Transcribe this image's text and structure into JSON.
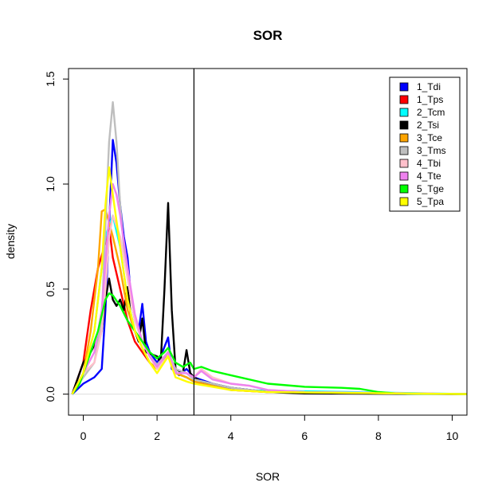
{
  "chart_data": {
    "type": "line",
    "title": "SOR",
    "xlabel": "SOR",
    "ylabel": "density",
    "xlim": [
      -0.4,
      10.4
    ],
    "ylim": [
      -0.1,
      1.55
    ],
    "xticks": [
      "0",
      "2",
      "4",
      "6",
      "8",
      "10"
    ],
    "yticks": [
      "0.0",
      "0.5",
      "1.0",
      "1.5"
    ],
    "vline": 3,
    "legend_position": "top-right",
    "series": [
      {
        "name": "1_Tdi",
        "color": "#0000ff",
        "points": [
          [
            -0.3,
            0
          ],
          [
            0,
            0.05
          ],
          [
            0.3,
            0.08
          ],
          [
            0.5,
            0.12
          ],
          [
            0.6,
            0.4
          ],
          [
            0.7,
            0.8
          ],
          [
            0.8,
            1.21
          ],
          [
            0.9,
            1.1
          ],
          [
            1.0,
            0.9
          ],
          [
            1.1,
            0.75
          ],
          [
            1.2,
            0.65
          ],
          [
            1.3,
            0.45
          ],
          [
            1.4,
            0.35
          ],
          [
            1.5,
            0.3
          ],
          [
            1.6,
            0.43
          ],
          [
            1.7,
            0.25
          ],
          [
            1.8,
            0.2
          ],
          [
            2.0,
            0.15
          ],
          [
            2.1,
            0.18
          ],
          [
            2.3,
            0.27
          ],
          [
            2.4,
            0.12
          ],
          [
            2.6,
            0.09
          ],
          [
            2.8,
            0.12
          ],
          [
            3.0,
            0.08
          ],
          [
            3.5,
            0.05
          ],
          [
            4,
            0.03
          ],
          [
            5,
            0.01
          ],
          [
            6,
            0.005
          ],
          [
            10.4,
            0
          ]
        ]
      },
      {
        "name": "1_Tps",
        "color": "#ff0000",
        "points": [
          [
            -0.3,
            0
          ],
          [
            0,
            0.15
          ],
          [
            0.2,
            0.4
          ],
          [
            0.4,
            0.6
          ],
          [
            0.6,
            0.72
          ],
          [
            0.7,
            0.8
          ],
          [
            0.8,
            0.65
          ],
          [
            1.0,
            0.5
          ],
          [
            1.2,
            0.35
          ],
          [
            1.4,
            0.25
          ],
          [
            1.6,
            0.2
          ],
          [
            1.8,
            0.15
          ],
          [
            2.0,
            0.12
          ],
          [
            2.3,
            0.2
          ],
          [
            2.5,
            0.1
          ],
          [
            2.8,
            0.08
          ],
          [
            3,
            0.06
          ],
          [
            4,
            0.02
          ],
          [
            5,
            0.01
          ],
          [
            10.4,
            0
          ]
        ]
      },
      {
        "name": "2_Tcm",
        "color": "#00ffff",
        "points": [
          [
            -0.3,
            0
          ],
          [
            0,
            0.1
          ],
          [
            0.3,
            0.3
          ],
          [
            0.6,
            0.75
          ],
          [
            0.8,
            0.85
          ],
          [
            1.0,
            0.7
          ],
          [
            1.2,
            0.45
          ],
          [
            1.4,
            0.3
          ],
          [
            1.6,
            0.22
          ],
          [
            1.8,
            0.15
          ],
          [
            2.0,
            0.12
          ],
          [
            2.3,
            0.18
          ],
          [
            2.5,
            0.1
          ],
          [
            2.8,
            0.08
          ],
          [
            3,
            0.06
          ],
          [
            4,
            0.02
          ],
          [
            10.4,
            0
          ]
        ]
      },
      {
        "name": "2_Tsi",
        "color": "#000000",
        "points": [
          [
            -0.3,
            0
          ],
          [
            0,
            0.15
          ],
          [
            0.2,
            0.2
          ],
          [
            0.5,
            0.3
          ],
          [
            0.6,
            0.45
          ],
          [
            0.7,
            0.55
          ],
          [
            0.8,
            0.45
          ],
          [
            0.9,
            0.42
          ],
          [
            1.0,
            0.45
          ],
          [
            1.1,
            0.4
          ],
          [
            1.2,
            0.51
          ],
          [
            1.3,
            0.35
          ],
          [
            1.5,
            0.25
          ],
          [
            1.6,
            0.36
          ],
          [
            1.7,
            0.2
          ],
          [
            2.0,
            0.18
          ],
          [
            2.1,
            0.15
          ],
          [
            2.2,
            0.5
          ],
          [
            2.3,
            0.91
          ],
          [
            2.4,
            0.4
          ],
          [
            2.5,
            0.12
          ],
          [
            2.7,
            0.1
          ],
          [
            2.8,
            0.21
          ],
          [
            2.9,
            0.1
          ],
          [
            3.0,
            0.08
          ],
          [
            3.2,
            0.06
          ],
          [
            3.5,
            0.05
          ],
          [
            4,
            0.03
          ],
          [
            5,
            0.01
          ],
          [
            6,
            0.003
          ],
          [
            10.4,
            0
          ]
        ]
      },
      {
        "name": "3_Tce",
        "color": "#ffa500",
        "points": [
          [
            -0.3,
            0
          ],
          [
            0,
            0.1
          ],
          [
            0.2,
            0.3
          ],
          [
            0.4,
            0.6
          ],
          [
            0.5,
            0.87
          ],
          [
            0.6,
            0.88
          ],
          [
            0.8,
            0.75
          ],
          [
            1.0,
            0.6
          ],
          [
            1.2,
            0.4
          ],
          [
            1.4,
            0.3
          ],
          [
            1.6,
            0.22
          ],
          [
            1.8,
            0.15
          ],
          [
            2.0,
            0.12
          ],
          [
            2.3,
            0.2
          ],
          [
            2.5,
            0.1
          ],
          [
            2.8,
            0.08
          ],
          [
            3,
            0.06
          ],
          [
            4,
            0.02
          ],
          [
            5,
            0.01
          ],
          [
            10.4,
            0
          ]
        ]
      },
      {
        "name": "3_Tms",
        "color": "#bebebe",
        "points": [
          [
            -0.3,
            0
          ],
          [
            0,
            0.08
          ],
          [
            0.3,
            0.15
          ],
          [
            0.5,
            0.35
          ],
          [
            0.6,
            0.8
          ],
          [
            0.7,
            1.2
          ],
          [
            0.8,
            1.39
          ],
          [
            0.9,
            1.2
          ],
          [
            1.0,
            0.9
          ],
          [
            1.1,
            0.7
          ],
          [
            1.2,
            0.55
          ],
          [
            1.4,
            0.35
          ],
          [
            1.6,
            0.25
          ],
          [
            1.8,
            0.18
          ],
          [
            2.0,
            0.14
          ],
          [
            2.3,
            0.2
          ],
          [
            2.5,
            0.12
          ],
          [
            2.8,
            0.1
          ],
          [
            3,
            0.07
          ],
          [
            3.5,
            0.05
          ],
          [
            4,
            0.03
          ],
          [
            5,
            0.01
          ],
          [
            10.4,
            0
          ]
        ]
      },
      {
        "name": "4_Tbi",
        "color": "#ffc0cb",
        "points": [
          [
            -0.3,
            0
          ],
          [
            0,
            0.1
          ],
          [
            0.3,
            0.15
          ],
          [
            0.5,
            0.3
          ],
          [
            0.6,
            0.5
          ],
          [
            0.7,
            0.75
          ],
          [
            0.8,
            0.85
          ],
          [
            1.0,
            0.75
          ],
          [
            1.2,
            0.55
          ],
          [
            1.4,
            0.35
          ],
          [
            1.6,
            0.25
          ],
          [
            1.8,
            0.18
          ],
          [
            2.0,
            0.12
          ],
          [
            2.3,
            0.18
          ],
          [
            2.5,
            0.1
          ],
          [
            2.8,
            0.1
          ],
          [
            3,
            0.08
          ],
          [
            3.2,
            0.12
          ],
          [
            3.5,
            0.08
          ],
          [
            4,
            0.05
          ],
          [
            4.5,
            0.04
          ],
          [
            5,
            0.02
          ],
          [
            6,
            0.01
          ],
          [
            10.4,
            0
          ]
        ]
      },
      {
        "name": "4_Tte",
        "color": "#ee82ee",
        "points": [
          [
            -0.3,
            0
          ],
          [
            0,
            0.1
          ],
          [
            0.3,
            0.2
          ],
          [
            0.5,
            0.4
          ],
          [
            0.7,
            0.85
          ],
          [
            0.8,
            1.0
          ],
          [
            0.9,
            0.95
          ],
          [
            1.0,
            0.85
          ],
          [
            1.2,
            0.6
          ],
          [
            1.4,
            0.38
          ],
          [
            1.6,
            0.25
          ],
          [
            1.8,
            0.18
          ],
          [
            2.0,
            0.13
          ],
          [
            2.3,
            0.2
          ],
          [
            2.5,
            0.1
          ],
          [
            2.8,
            0.1
          ],
          [
            3,
            0.08
          ],
          [
            3.2,
            0.11
          ],
          [
            3.5,
            0.07
          ],
          [
            4,
            0.05
          ],
          [
            4.5,
            0.04
          ],
          [
            5,
            0.02
          ],
          [
            6,
            0.01
          ],
          [
            10.4,
            0
          ]
        ]
      },
      {
        "name": "5_Tge",
        "color": "#00ff00",
        "points": [
          [
            -0.3,
            0
          ],
          [
            -0.1,
            0.05
          ],
          [
            0,
            0.1
          ],
          [
            0.2,
            0.2
          ],
          [
            0.4,
            0.3
          ],
          [
            0.6,
            0.45
          ],
          [
            0.7,
            0.48
          ],
          [
            0.8,
            0.47
          ],
          [
            1.0,
            0.42
          ],
          [
            1.2,
            0.35
          ],
          [
            1.4,
            0.3
          ],
          [
            1.6,
            0.25
          ],
          [
            1.8,
            0.2
          ],
          [
            2.0,
            0.17
          ],
          [
            2.2,
            0.2
          ],
          [
            2.3,
            0.22
          ],
          [
            2.5,
            0.15
          ],
          [
            2.7,
            0.13
          ],
          [
            2.9,
            0.15
          ],
          [
            3.0,
            0.12
          ],
          [
            3.2,
            0.13
          ],
          [
            3.5,
            0.11
          ],
          [
            4,
            0.09
          ],
          [
            5,
            0.05
          ],
          [
            6,
            0.035
          ],
          [
            7,
            0.03
          ],
          [
            7.5,
            0.025
          ],
          [
            8,
            0.01
          ],
          [
            8.5,
            0.003
          ],
          [
            10.4,
            0
          ]
        ]
      },
      {
        "name": "5_Tpa",
        "color": "#ffff00",
        "points": [
          [
            -0.3,
            0
          ],
          [
            0,
            0.1
          ],
          [
            0.3,
            0.3
          ],
          [
            0.5,
            0.6
          ],
          [
            0.6,
            0.9
          ],
          [
            0.7,
            1.08
          ],
          [
            0.8,
            0.95
          ],
          [
            1.0,
            0.7
          ],
          [
            1.2,
            0.45
          ],
          [
            1.4,
            0.3
          ],
          [
            1.6,
            0.22
          ],
          [
            1.8,
            0.15
          ],
          [
            2.0,
            0.1
          ],
          [
            2.3,
            0.18
          ],
          [
            2.5,
            0.08
          ],
          [
            2.8,
            0.06
          ],
          [
            3,
            0.05
          ],
          [
            4,
            0.02
          ],
          [
            5,
            0.01
          ],
          [
            10.4,
            0
          ]
        ]
      }
    ]
  }
}
